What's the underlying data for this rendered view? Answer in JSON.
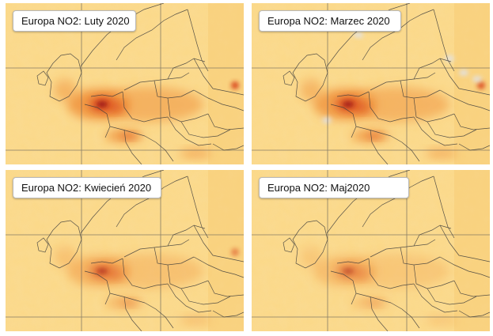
{
  "panels": [
    {
      "title": "Europa NO2: Luty 2020",
      "intensity": 1.0,
      "ukraine_hotspot": true,
      "snow": false
    },
    {
      "title": "Europa NO2: Marzec 2020",
      "intensity": 0.95,
      "ukraine_hotspot": true,
      "snow": true
    },
    {
      "title": "Europa NO2: Kwiecień 2020",
      "intensity": 0.6,
      "ukraine_hotspot": true,
      "snow": false
    },
    {
      "title": "Europa NO2: Maj2020",
      "intensity": 0.45,
      "ukraine_hotspot": false,
      "snow": false
    }
  ],
  "colors": {
    "background": "#fbd98a",
    "low": "#f7c66b",
    "medium": "#f0933c",
    "high": "#d9461f",
    "peak": "#9c1a1a",
    "borders": "#3b3b3b",
    "grid": "#555555"
  }
}
